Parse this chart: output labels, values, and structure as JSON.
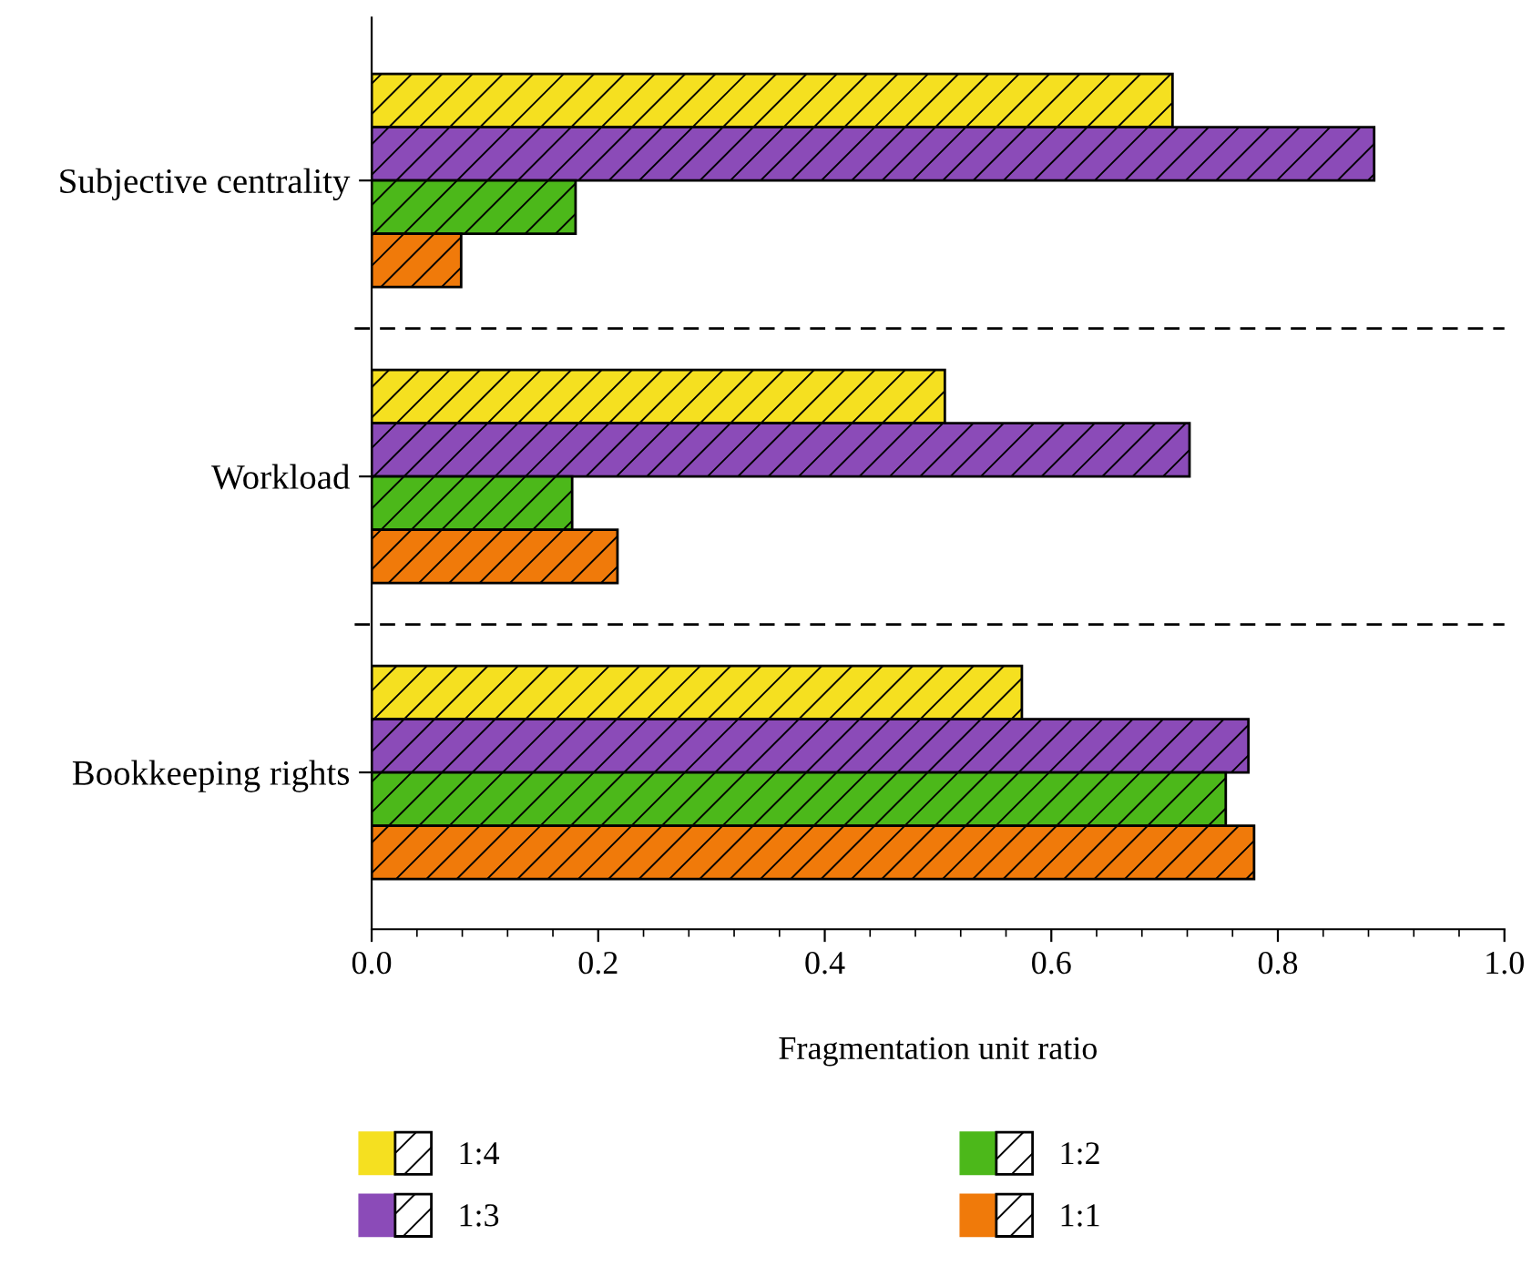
{
  "chart_data": {
    "type": "bar",
    "orientation": "horizontal",
    "xlabel": "Fragmentation unit ratio",
    "categories": [
      "Subjective centrality",
      "Workload",
      "Bookkeeping rights"
    ],
    "series": [
      {
        "name": "1:4",
        "color": "#f5e020",
        "values": [
          0.707,
          0.506,
          0.574
        ]
      },
      {
        "name": "1:3",
        "color": "#8b4bb8",
        "values": [
          0.885,
          0.722,
          0.774
        ]
      },
      {
        "name": "1:2",
        "color": "#4cb81a",
        "values": [
          0.18,
          0.177,
          0.754
        ]
      },
      {
        "name": "1:1",
        "color": "#f07a0a",
        "values": [
          0.079,
          0.217,
          0.779
        ]
      }
    ],
    "xlim": [
      0,
      1.0
    ],
    "xticks": [
      {
        "value": 0,
        "label": "0.0"
      },
      0.2,
      0.4,
      0.6,
      0.8,
      {
        "value": 1,
        "label": "1.0"
      }
    ],
    "grid": false,
    "legend": "bottom"
  }
}
